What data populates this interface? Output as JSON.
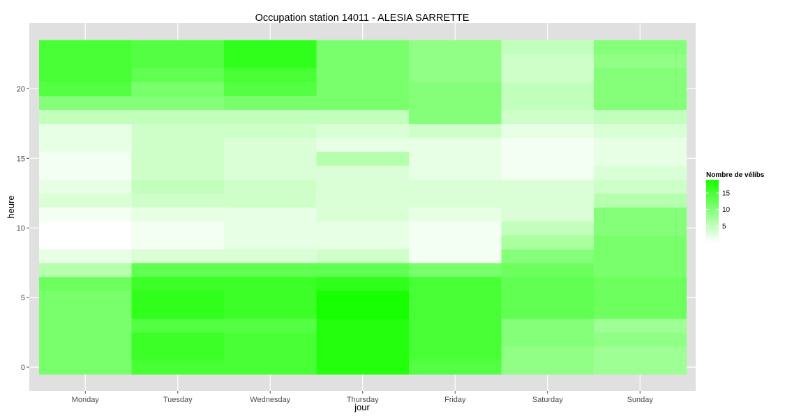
{
  "chart_data": {
    "type": "heatmap",
    "title": "Occupation station 14011 - ALESIA SARRETTE",
    "xlabel": "jour",
    "ylabel": "heure",
    "x_categories": [
      "Monday",
      "Tuesday",
      "Wednesday",
      "Thursday",
      "Friday",
      "Saturday",
      "Sunday"
    ],
    "y_values": [
      0,
      1,
      2,
      3,
      4,
      5,
      6,
      7,
      8,
      9,
      10,
      11,
      12,
      13,
      14,
      15,
      16,
      17,
      18,
      19,
      20,
      21,
      22,
      23
    ],
    "y_ticks": [
      0,
      5,
      10,
      15,
      20
    ],
    "ylim": [
      -0.5,
      23.5
    ],
    "grid": true,
    "values": [
      [
        11,
        15,
        15,
        18,
        14,
        9,
        8
      ],
      [
        11,
        16,
        15,
        18,
        15,
        9,
        8
      ],
      [
        11,
        16,
        15,
        18,
        15,
        10,
        9
      ],
      [
        11,
        14,
        14,
        18,
        15,
        10,
        8
      ],
      [
        11,
        17,
        16,
        19,
        15,
        13,
        12
      ],
      [
        11,
        17,
        16,
        19,
        15,
        13,
        12
      ],
      [
        12,
        16,
        16,
        17,
        15,
        13,
        12
      ],
      [
        6,
        13,
        13,
        13,
        11,
        12,
        11
      ],
      [
        2,
        3,
        3,
        4,
        1,
        10,
        11
      ],
      [
        0,
        1,
        2,
        2,
        1,
        7,
        11
      ],
      [
        0,
        1,
        2,
        2,
        1,
        5,
        10
      ],
      [
        1,
        2,
        2,
        3,
        2,
        3,
        10
      ],
      [
        3,
        4,
        4,
        3,
        3,
        3,
        6
      ],
      [
        2,
        5,
        4,
        3,
        3,
        3,
        4
      ],
      [
        1,
        4,
        3,
        3,
        2,
        1,
        3
      ],
      [
        1,
        4,
        3,
        6,
        2,
        1,
        2
      ],
      [
        2,
        4,
        3,
        2,
        2,
        1,
        2
      ],
      [
        2,
        4,
        4,
        3,
        4,
        2,
        3
      ],
      [
        5,
        5,
        5,
        5,
        10,
        4,
        5
      ],
      [
        10,
        10,
        11,
        11,
        10,
        5,
        10
      ],
      [
        14,
        11,
        14,
        11,
        10,
        5,
        10
      ],
      [
        15,
        13,
        15,
        11,
        9,
        4,
        10
      ],
      [
        15,
        14,
        17,
        11,
        9,
        4,
        9
      ],
      [
        15,
        14,
        17,
        11,
        9,
        5,
        10
      ]
    ],
    "value_range": [
      0,
      19
    ],
    "color_low": "#ffffff",
    "color_high": "#17ff00",
    "legend": {
      "title": "Nombre de vélibs",
      "ticks": [
        5,
        10,
        15
      ],
      "position": "right"
    },
    "colors": {
      "panel_background": "#e0e0e0",
      "grid_line": "#ffffff",
      "tick_label": "#4d4d4d"
    }
  }
}
